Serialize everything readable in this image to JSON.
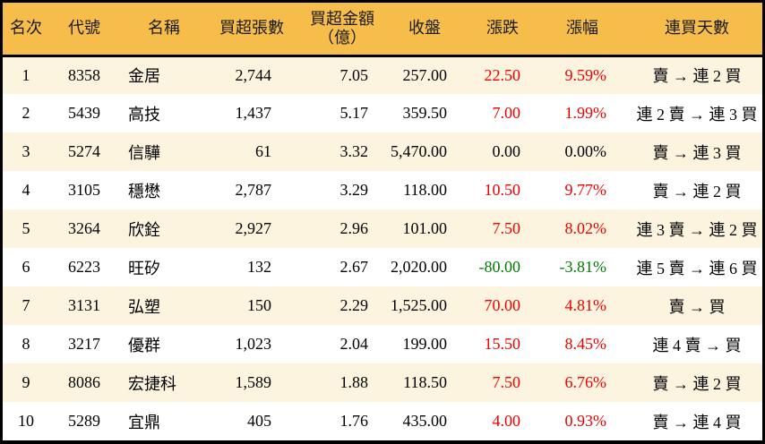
{
  "colors": {
    "header_bg": "#F7BD4A",
    "row_alt_bg": "#FCF4DF",
    "row_bg": "#FFFFFF",
    "border": "#000000",
    "up_text": "#EE0000",
    "down_text": "#007B00",
    "neutral_text": "#000000"
  },
  "table": {
    "columns": [
      {
        "key": "rank",
        "label": "名次"
      },
      {
        "key": "code",
        "label": "代號"
      },
      {
        "key": "name",
        "label": "名稱"
      },
      {
        "key": "volume",
        "label": "買超張數"
      },
      {
        "key": "amount",
        "label": "買超金額",
        "label2": "（億）"
      },
      {
        "key": "close",
        "label": "收盤"
      },
      {
        "key": "change",
        "label": "漲跌"
      },
      {
        "key": "pct",
        "label": "漲幅"
      },
      {
        "key": "streak",
        "label": "連買天數"
      }
    ]
  },
  "chart_data": {
    "type": "table",
    "title": "",
    "columns": [
      "名次",
      "代號",
      "名稱",
      "買超張數",
      "買超金額（億）",
      "收盤",
      "漲跌",
      "漲幅",
      "連買天數"
    ],
    "rows": [
      {
        "rank": "1",
        "code": "8358",
        "name": "金居",
        "volume": "2,744",
        "amount": "7.05",
        "close": "257.00",
        "change": "22.50",
        "pct": "9.59%",
        "streak": "賣 → 連 2 買",
        "trend": "up"
      },
      {
        "rank": "2",
        "code": "5439",
        "name": "高技",
        "volume": "1,437",
        "amount": "5.17",
        "close": "359.50",
        "change": "7.00",
        "pct": "1.99%",
        "streak": "連 2 賣 → 連 3 買",
        "trend": "up"
      },
      {
        "rank": "3",
        "code": "5274",
        "name": "信驊",
        "volume": "61",
        "amount": "3.32",
        "close": "5,470.00",
        "change": "0.00",
        "pct": "0.00%",
        "streak": "賣 → 連 3 買",
        "trend": "flat"
      },
      {
        "rank": "4",
        "code": "3105",
        "name": "穩懋",
        "volume": "2,787",
        "amount": "3.29",
        "close": "118.00",
        "change": "10.50",
        "pct": "9.77%",
        "streak": "賣 → 連 2 買",
        "trend": "up"
      },
      {
        "rank": "5",
        "code": "3264",
        "name": "欣銓",
        "volume": "2,927",
        "amount": "2.96",
        "close": "101.00",
        "change": "7.50",
        "pct": "8.02%",
        "streak": "連 3 賣 → 連 2 買",
        "trend": "up"
      },
      {
        "rank": "6",
        "code": "6223",
        "name": "旺矽",
        "volume": "132",
        "amount": "2.67",
        "close": "2,020.00",
        "change": "-80.00",
        "pct": "-3.81%",
        "streak": "連 5 賣 → 連 6 買",
        "trend": "down"
      },
      {
        "rank": "7",
        "code": "3131",
        "name": "弘塑",
        "volume": "150",
        "amount": "2.29",
        "close": "1,525.00",
        "change": "70.00",
        "pct": "4.81%",
        "streak": "賣 → 買",
        "trend": "up"
      },
      {
        "rank": "8",
        "code": "3217",
        "name": "優群",
        "volume": "1,023",
        "amount": "2.04",
        "close": "199.00",
        "change": "15.50",
        "pct": "8.45%",
        "streak": "連 4 賣 → 買",
        "trend": "up"
      },
      {
        "rank": "9",
        "code": "8086",
        "name": "宏捷科",
        "volume": "1,589",
        "amount": "1.88",
        "close": "118.50",
        "change": "7.50",
        "pct": "6.76%",
        "streak": "賣 → 連 2 買",
        "trend": "up"
      },
      {
        "rank": "10",
        "code": "5289",
        "name": "宜鼎",
        "volume": "405",
        "amount": "1.76",
        "close": "435.00",
        "change": "4.00",
        "pct": "0.93%",
        "streak": "賣 → 連 4 買",
        "trend": "up"
      }
    ]
  }
}
